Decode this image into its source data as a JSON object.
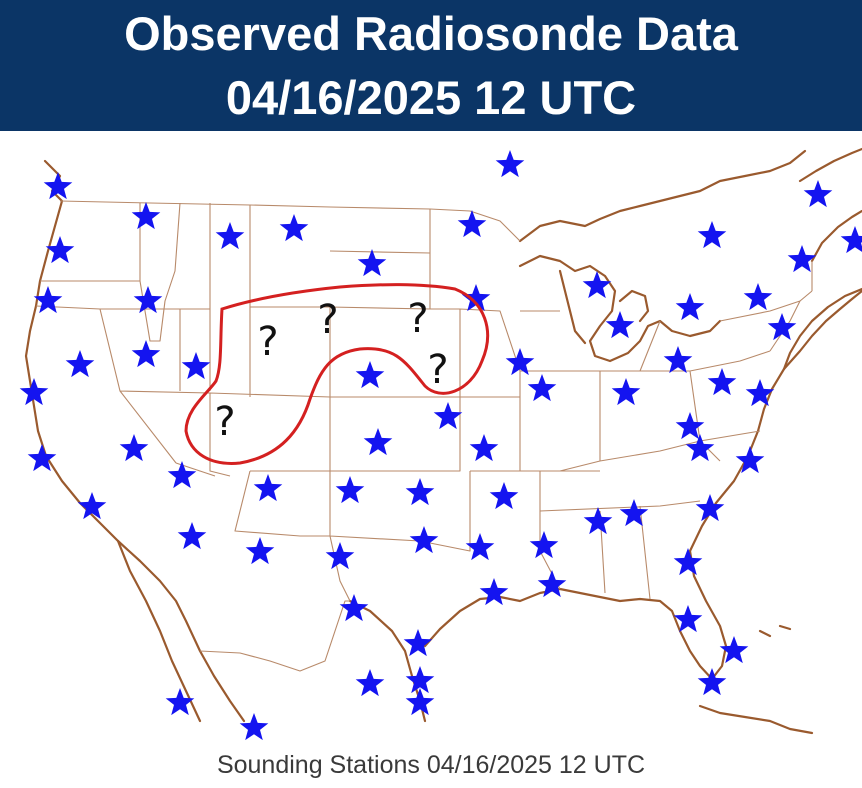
{
  "header": {
    "title_line_1": "Observed Radiosonde Data",
    "title_line_2": "04/16/2025 12 UTC",
    "background_color": "#0b3566",
    "text_color": "#ffffff"
  },
  "map": {
    "station_symbol": "star-icon",
    "station_color": "#1414f0",
    "coastline_color": "#9a5a2e",
    "border_color": "#b88a6a",
    "highlight_outline_color": "#d42020",
    "missing_station_marker": "?",
    "missing_station_count": 5,
    "stations_shown": 72
  },
  "caption": {
    "text": "Sounding Stations 04/16/2025 12 UTC"
  }
}
